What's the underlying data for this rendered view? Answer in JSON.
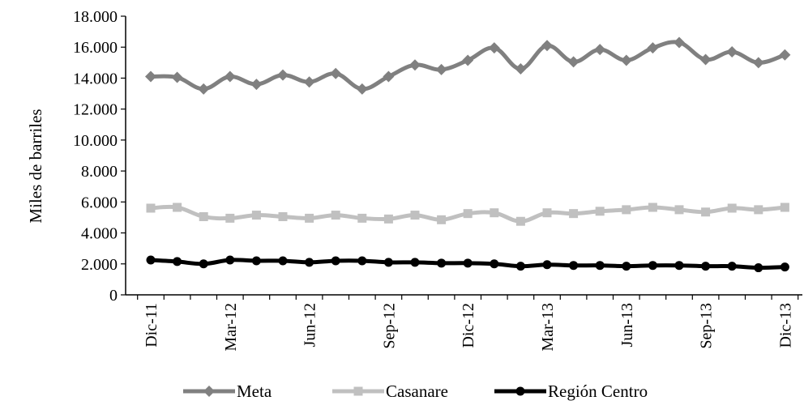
{
  "chart_data": {
    "type": "line",
    "title": "",
    "xlabel": "",
    "ylabel": "Miles de barriles",
    "ylim": [
      0,
      18000
    ],
    "y_ticks": [
      0,
      2000,
      4000,
      6000,
      8000,
      10000,
      12000,
      14000,
      16000,
      18000
    ],
    "y_tick_labels": [
      "0",
      "2.000",
      "4.000",
      "6.000",
      "8.000",
      "10.000",
      "12.000",
      "14.000",
      "16.000",
      "18.000"
    ],
    "x": [
      "Dic-11",
      "Ene-12",
      "Feb-12",
      "Mar-12",
      "Abr-12",
      "May-12",
      "Jun-12",
      "Jul-12",
      "Ago-12",
      "Sep-12",
      "Oct-12",
      "Nov-12",
      "Dic-12",
      "Ene-13",
      "Feb-13",
      "Mar-13",
      "Abr-13",
      "May-13",
      "Jun-13",
      "Jul-13",
      "Ago-13",
      "Sep-13",
      "Oct-13",
      "Nov-13",
      "Dic-13"
    ],
    "x_tick_labels": [
      "Dic-11",
      "",
      "",
      "Mar-12",
      "",
      "",
      "Jun-12",
      "",
      "",
      "Sep-12",
      "",
      "",
      "Dic-12",
      "",
      "",
      "Mar-13",
      "",
      "",
      "Jun-13",
      "",
      "",
      "Sep-13",
      "",
      "",
      "Dic-13"
    ],
    "grid": false,
    "legend_position": "bottom",
    "series": [
      {
        "name": "Meta",
        "color": "#808080",
        "marker": "diamond",
        "values": [
          14100,
          14050,
          13300,
          14100,
          13600,
          14200,
          13750,
          14300,
          13300,
          14100,
          14850,
          14550,
          15150,
          15950,
          14600,
          16100,
          15050,
          15850,
          15150,
          15950,
          16300,
          15200,
          15700,
          15000,
          15500
        ]
      },
      {
        "name": "Casanare",
        "color": "#c0c0c0",
        "marker": "square",
        "values": [
          5600,
          5650,
          5050,
          4950,
          5150,
          5050,
          4950,
          5150,
          4950,
          4900,
          5150,
          4850,
          5250,
          5300,
          4750,
          5300,
          5250,
          5400,
          5500,
          5650,
          5500,
          5350,
          5600,
          5500,
          5650
        ]
      },
      {
        "name": "Región Centro",
        "color": "#000000",
        "marker": "circle",
        "values": [
          2250,
          2150,
          2000,
          2250,
          2200,
          2200,
          2100,
          2200,
          2200,
          2100,
          2100,
          2050,
          2050,
          2000,
          1850,
          1950,
          1900,
          1900,
          1850,
          1900,
          1900,
          1850,
          1850,
          1750,
          1800
        ]
      }
    ]
  }
}
